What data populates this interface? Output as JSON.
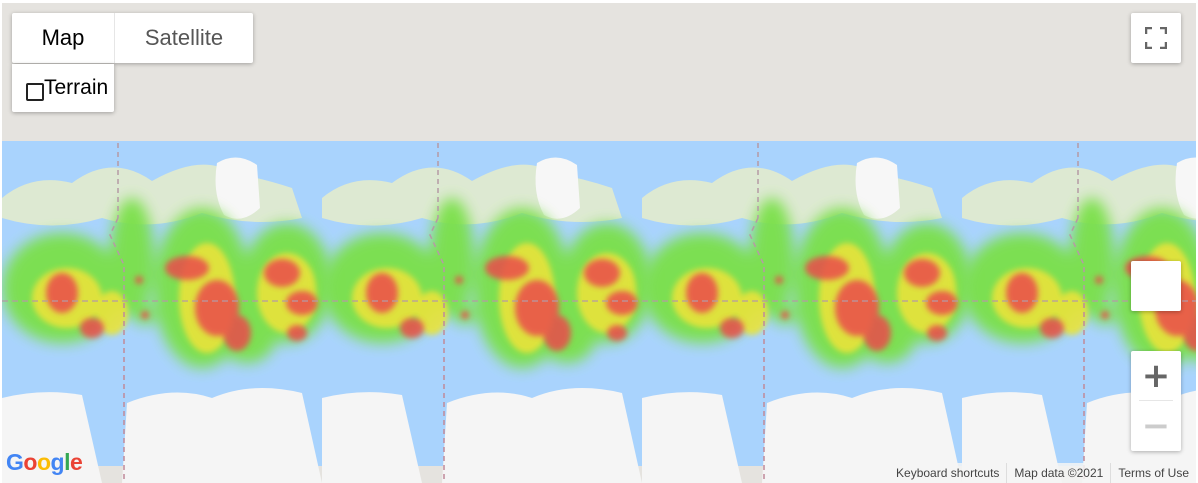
{
  "map_type": {
    "options": [
      "Map",
      "Satellite"
    ],
    "selected": "Map"
  },
  "terrain_label": "Terrain",
  "zoom": {
    "in_label": "+",
    "out_label": "−"
  },
  "logo_text": "Google",
  "footer": {
    "keyboard_shortcuts": "Keyboard shortcuts",
    "map_data": "Map data ©2021",
    "terms": "Terms of Use"
  },
  "colors": {
    "water": "#a9d3fd",
    "land": "#dde9d2",
    "ice": "#f5f5f5",
    "background": "#e5e3df",
    "heat_low": "#7ae04a",
    "heat_mid": "#e9e33a",
    "heat_high": "#ea4b4b"
  }
}
